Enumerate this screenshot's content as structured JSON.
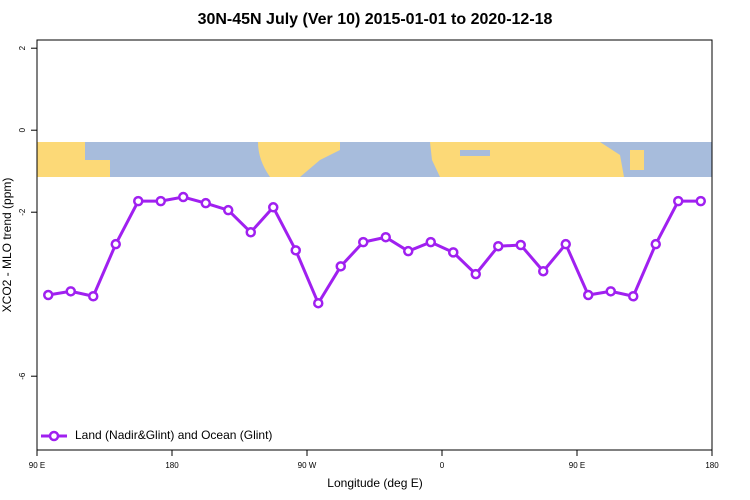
{
  "chart_data": {
    "type": "line",
    "title": "30N-45N July (Ver 10)   2015-01-01 to 2020-12-18",
    "x_label": "Longitude (deg E)",
    "y_label": "XCO2 - MLO trend (ppm)",
    "x": [
      97.5,
      112.5,
      127.5,
      142.5,
      157.5,
      172.5,
      187.5,
      202.5,
      217.5,
      232.5,
      247.5,
      262.5,
      277.5,
      292.5,
      307.5,
      322.5,
      337.5,
      352.5,
      367.5,
      382.5,
      397.5,
      412.5,
      427.5,
      442.5,
      457.5,
      472.5,
      487.5,
      502.5,
      517.5,
      532.5
    ],
    "series": [
      {
        "name": "Land (Nadir&Glint) and Ocean (Glint)",
        "color": "#a020f0",
        "values": [
          -4.02,
          -3.93,
          -4.05,
          -2.78,
          -1.73,
          -1.73,
          -1.63,
          -1.78,
          -1.95,
          -2.49,
          -1.88,
          -2.93,
          -4.22,
          -3.32,
          -2.73,
          -2.61,
          -2.95,
          -2.73,
          -2.98,
          -3.51,
          -2.83,
          -2.8,
          -3.44,
          -2.78,
          -4.02,
          -3.93,
          -4.05,
          -2.78,
          -1.73,
          -1.73
        ]
      }
    ],
    "xlim": [
      90,
      540
    ],
    "xticks": [
      {
        "value": 90,
        "label": "90 E"
      },
      180,
      {
        "value": 270,
        "label": "90 W"
      },
      {
        "value": 360,
        "label": "0"
      },
      {
        "value": 450,
        "label": "90 E"
      },
      {
        "value": 540,
        "label": "180"
      }
    ],
    "ylim": [
      -7.8,
      2.2
    ],
    "yticks": [
      2,
      0,
      -2,
      -6
    ],
    "legend": "bottom-left"
  }
}
